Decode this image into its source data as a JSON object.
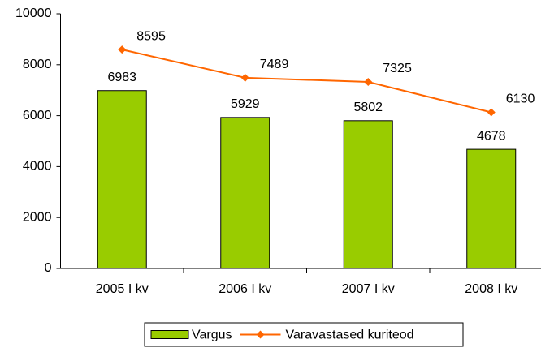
{
  "chart_data": {
    "type": "combo",
    "categories": [
      "2005 I kv",
      "2006 I kv",
      "2007 I kv",
      "2008 I kv"
    ],
    "series": [
      {
        "name": "Vargus",
        "type": "bar",
        "color": "#99cc00",
        "values": [
          6983,
          5929,
          5802,
          4678
        ]
      },
      {
        "name": "Varavastased kuriteod",
        "type": "line",
        "color": "#ff6600",
        "values": [
          8595,
          7489,
          7325,
          6130
        ]
      }
    ],
    "ylim": [
      0,
      10000
    ],
    "yticks": [
      0,
      2000,
      4000,
      6000,
      8000,
      10000
    ],
    "grid": false,
    "legend": "bottom"
  }
}
